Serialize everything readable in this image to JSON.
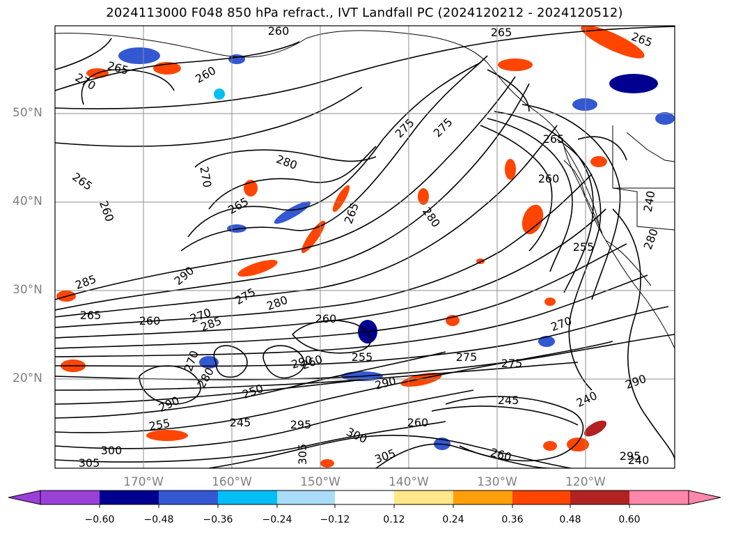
{
  "title": "2024113000 F048 850 hPa refract., IVT Landfall PC (2024120212 - 2024120512)",
  "lat_ticks": [
    "50°N",
    "40°N",
    "30°N",
    "20°N"
  ],
  "lon_ticks": [
    "170°W",
    "160°W",
    "150°W",
    "140°W",
    "130°W",
    "120°W"
  ],
  "contour_labels": [
    "260",
    "265",
    "270",
    "265",
    "260",
    "265",
    "270",
    "265",
    "260",
    "265",
    "280",
    "275",
    "275",
    "280",
    "265",
    "260",
    "265",
    "275",
    "290",
    "285",
    "280",
    "270",
    "260",
    "265",
    "260",
    "285",
    "260",
    "275",
    "255",
    "290",
    "275",
    "290",
    "270",
    "280",
    "290",
    "255",
    "245",
    "250",
    "260",
    "300",
    "305",
    "295",
    "305",
    "300",
    "305",
    "260",
    "270",
    "245",
    "240",
    "290",
    "295",
    "240",
    "255",
    "240",
    "280"
  ],
  "colorbar": {
    "ticks": [
      "−0.60",
      "−0.48",
      "−0.36",
      "−0.24",
      "−0.12",
      "0.12",
      "0.24",
      "0.36",
      "0.48",
      "0.60"
    ],
    "colors": [
      "#9b3fd9",
      "#000090",
      "#3358d2",
      "#00bff5",
      "#a8dcf8",
      "#ffffff",
      "#ffe78a",
      "#ffa00a",
      "#ff4500",
      "#b22222",
      "#ff87aa"
    ]
  },
  "colors": {
    "grid": "#8c8c8c",
    "contour": "#000000",
    "coast": "#000000",
    "frame": "#000000",
    "tick_label": "#7f7f7f"
  }
}
